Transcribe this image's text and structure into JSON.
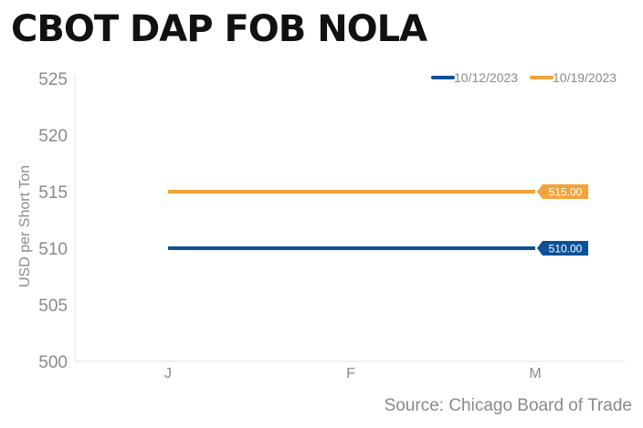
{
  "page": {
    "title": "CBOT DAP FOB NOLA",
    "source": "Source: Chicago Board of Trade"
  },
  "chart_data": {
    "type": "line",
    "title": "CBOT DAP FOB NOLA",
    "xlabel": "",
    "ylabel": "USD per Short Ton",
    "categories": [
      "J",
      "F",
      "M"
    ],
    "ylim": [
      500,
      525
    ],
    "yticks": [
      "500",
      "505",
      "510",
      "515",
      "520",
      "525"
    ],
    "grid": false,
    "legend_position": "top-right",
    "series": [
      {
        "name": "10/12/2023",
        "values": [
          510,
          510,
          510
        ],
        "color": "#0d5196",
        "end_label": "510.00"
      },
      {
        "name": "10/19/2023",
        "values": [
          515,
          515,
          515
        ],
        "color": "#f2a33a",
        "end_label": "515.00"
      }
    ]
  }
}
